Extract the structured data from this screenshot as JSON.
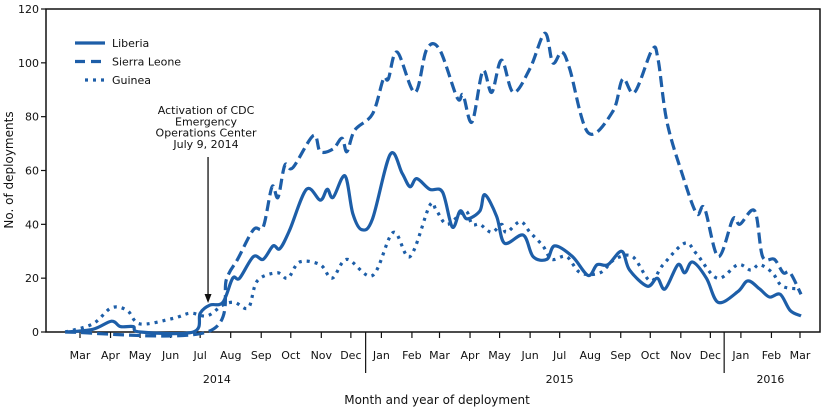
{
  "chart_data": {
    "type": "line",
    "title": "",
    "xlabel": "Month and year of deployment",
    "ylabel": "No. of deployments",
    "ylim": [
      0,
      120
    ],
    "yticks": [
      0,
      20,
      40,
      60,
      80,
      100,
      120
    ],
    "xlim": [
      "2014-02-01",
      "2016-03-15"
    ],
    "grid": false,
    "legend": "top-left",
    "color": "#1d5ea8",
    "month_ticks": [
      {
        "date": "2014-03-01",
        "label": "Mar"
      },
      {
        "date": "2014-04-01",
        "label": "Apr"
      },
      {
        "date": "2014-05-01",
        "label": "May"
      },
      {
        "date": "2014-06-01",
        "label": "Jun"
      },
      {
        "date": "2014-07-01",
        "label": "Jul"
      },
      {
        "date": "2014-08-01",
        "label": "Aug"
      },
      {
        "date": "2014-09-01",
        "label": "Sep"
      },
      {
        "date": "2014-10-01",
        "label": "Oct"
      },
      {
        "date": "2014-11-01",
        "label": "Nov"
      },
      {
        "date": "2014-12-01",
        "label": "Dec"
      },
      {
        "date": "2015-01-01",
        "label": "Jan"
      },
      {
        "date": "2015-02-01",
        "label": "Feb"
      },
      {
        "date": "2015-03-01",
        "label": "Mar"
      },
      {
        "date": "2015-04-01",
        "label": "Apr"
      },
      {
        "date": "2015-05-01",
        "label": "May"
      },
      {
        "date": "2015-06-01",
        "label": "Jun"
      },
      {
        "date": "2015-07-01",
        "label": "Jul"
      },
      {
        "date": "2015-08-01",
        "label": "Aug"
      },
      {
        "date": "2015-09-01",
        "label": "Sep"
      },
      {
        "date": "2015-10-01",
        "label": "Oct"
      },
      {
        "date": "2015-11-01",
        "label": "Nov"
      },
      {
        "date": "2015-12-01",
        "label": "Dec"
      },
      {
        "date": "2016-01-01",
        "label": "Jan"
      },
      {
        "date": "2016-02-01",
        "label": "Feb"
      },
      {
        "date": "2016-03-01",
        "label": "Mar"
      }
    ],
    "years": [
      {
        "label": "2014",
        "center": "2014-07-18",
        "end": "2014-12-16"
      },
      {
        "label": "2015",
        "center": "2015-07-01",
        "end": "2015-12-15"
      },
      {
        "label": "2016",
        "center": "2016-01-31"
      }
    ],
    "annotation": {
      "lines": [
        "Activation of CDC",
        "Emergency",
        "Operations Center",
        "July 9, 2014"
      ],
      "date": "2014-07-09",
      "value": 11
    },
    "series": [
      {
        "name": "Liberia",
        "style": "solid",
        "points": [
          [
            "2014-02-14",
            0
          ],
          [
            "2014-03-14",
            1
          ],
          [
            "2014-04-02",
            4
          ],
          [
            "2014-04-11",
            2
          ],
          [
            "2014-04-24",
            2
          ],
          [
            "2014-05-01",
            0
          ],
          [
            "2014-06-24",
            0
          ],
          [
            "2014-07-01",
            7
          ],
          [
            "2014-07-11",
            10
          ],
          [
            "2014-07-24",
            11
          ],
          [
            "2014-08-03",
            20
          ],
          [
            "2014-08-10",
            20
          ],
          [
            "2014-08-24",
            28
          ],
          [
            "2014-09-03",
            27
          ],
          [
            "2014-09-13",
            32
          ],
          [
            "2014-09-20",
            31
          ],
          [
            "2014-09-30",
            38
          ],
          [
            "2014-10-17",
            53
          ],
          [
            "2014-10-31",
            49
          ],
          [
            "2014-11-07",
            53
          ],
          [
            "2014-11-13",
            50
          ],
          [
            "2014-11-25",
            58
          ],
          [
            "2014-12-03",
            44
          ],
          [
            "2014-12-12",
            38
          ],
          [
            "2014-12-23",
            42
          ],
          [
            "2015-01-10",
            66
          ],
          [
            "2015-01-22",
            59
          ],
          [
            "2015-01-30",
            54
          ],
          [
            "2015-02-06",
            57
          ],
          [
            "2015-02-19",
            53
          ],
          [
            "2015-03-04",
            52
          ],
          [
            "2015-03-14",
            39
          ],
          [
            "2015-03-22",
            45
          ],
          [
            "2015-03-29",
            42
          ],
          [
            "2015-04-11",
            45
          ],
          [
            "2015-04-16",
            51
          ],
          [
            "2015-04-28",
            43
          ],
          [
            "2015-05-06",
            33
          ],
          [
            "2015-05-25",
            36
          ],
          [
            "2015-06-04",
            28
          ],
          [
            "2015-06-18",
            27
          ],
          [
            "2015-06-26",
            32
          ],
          [
            "2015-07-14",
            28
          ],
          [
            "2015-07-30",
            21
          ],
          [
            "2015-08-08",
            25
          ],
          [
            "2015-08-19",
            25
          ],
          [
            "2015-09-02",
            30
          ],
          [
            "2015-09-10",
            23
          ],
          [
            "2015-09-28",
            17
          ],
          [
            "2015-10-08",
            20
          ],
          [
            "2015-10-16",
            16
          ],
          [
            "2015-10-29",
            25
          ],
          [
            "2015-11-05",
            22
          ],
          [
            "2015-11-13",
            26
          ],
          [
            "2015-11-27",
            20
          ],
          [
            "2015-12-09",
            11
          ],
          [
            "2015-12-29",
            15
          ],
          [
            "2016-01-08",
            19
          ],
          [
            "2016-01-20",
            16
          ],
          [
            "2016-01-30",
            13
          ],
          [
            "2016-02-10",
            14
          ],
          [
            "2016-02-20",
            8
          ],
          [
            "2016-03-02",
            6
          ]
        ]
      },
      {
        "name": "Sierra Leone",
        "style": "dashed",
        "points": [
          [
            "2014-02-14",
            0
          ],
          [
            "2014-07-08",
            0
          ],
          [
            "2014-07-28",
            20
          ],
          [
            "2014-08-08",
            27
          ],
          [
            "2014-08-24",
            38
          ],
          [
            "2014-09-03",
            39
          ],
          [
            "2014-09-12",
            54
          ],
          [
            "2014-09-18",
            50
          ],
          [
            "2014-09-25",
            62
          ],
          [
            "2014-10-03",
            61
          ],
          [
            "2014-10-24",
            73
          ],
          [
            "2014-10-31",
            67
          ],
          [
            "2014-11-13",
            68
          ],
          [
            "2014-11-22",
            72
          ],
          [
            "2014-11-27",
            67
          ],
          [
            "2014-12-05",
            75
          ],
          [
            "2014-12-23",
            81
          ],
          [
            "2015-01-03",
            94
          ],
          [
            "2015-01-08",
            94
          ],
          [
            "2015-01-17",
            104
          ],
          [
            "2015-02-04",
            89
          ],
          [
            "2015-02-16",
            105
          ],
          [
            "2015-03-01",
            105
          ],
          [
            "2015-03-19",
            87
          ],
          [
            "2015-03-25",
            88
          ],
          [
            "2015-04-03",
            78
          ],
          [
            "2015-04-14",
            97
          ],
          [
            "2015-04-23",
            89
          ],
          [
            "2015-05-03",
            101
          ],
          [
            "2015-05-15",
            89
          ],
          [
            "2015-06-01",
            98
          ],
          [
            "2015-06-16",
            111
          ],
          [
            "2015-06-24",
            100
          ],
          [
            "2015-07-03",
            104
          ],
          [
            "2015-07-11",
            98
          ],
          [
            "2015-07-30",
            74
          ],
          [
            "2015-08-24",
            82
          ],
          [
            "2015-09-03",
            94
          ],
          [
            "2015-09-15",
            89
          ],
          [
            "2015-10-03",
            105
          ],
          [
            "2015-10-09",
            101
          ],
          [
            "2015-10-18",
            78
          ],
          [
            "2015-11-03",
            58
          ],
          [
            "2015-11-17",
            44
          ],
          [
            "2015-11-25",
            46
          ],
          [
            "2015-12-09",
            28
          ],
          [
            "2015-12-24",
            42
          ],
          [
            "2015-12-31",
            40
          ],
          [
            "2016-01-15",
            45
          ],
          [
            "2016-01-23",
            28
          ],
          [
            "2016-02-04",
            27
          ],
          [
            "2016-02-13",
            22
          ],
          [
            "2016-02-20",
            22
          ],
          [
            "2016-03-02",
            14
          ]
        ]
      },
      {
        "name": "Guinea",
        "style": "dotted",
        "points": [
          [
            "2014-02-14",
            0
          ],
          [
            "2014-03-14",
            3
          ],
          [
            "2014-04-02",
            9
          ],
          [
            "2014-04-18",
            8
          ],
          [
            "2014-05-01",
            3
          ],
          [
            "2014-06-03",
            5
          ],
          [
            "2014-06-21",
            7
          ],
          [
            "2014-07-08",
            6
          ],
          [
            "2014-07-24",
            10
          ],
          [
            "2014-08-05",
            11
          ],
          [
            "2014-08-19",
            9
          ],
          [
            "2014-08-28",
            19
          ],
          [
            "2014-09-17",
            22
          ],
          [
            "2014-09-28",
            20
          ],
          [
            "2014-10-10",
            26
          ],
          [
            "2014-10-31",
            25
          ],
          [
            "2014-11-12",
            20
          ],
          [
            "2014-11-27",
            27
          ],
          [
            "2014-12-23",
            21
          ],
          [
            "2015-01-13",
            37
          ],
          [
            "2015-01-30",
            28
          ],
          [
            "2015-02-19",
            47
          ],
          [
            "2015-02-26",
            45
          ],
          [
            "2015-03-09",
            40
          ],
          [
            "2015-03-27",
            45
          ],
          [
            "2015-04-03",
            40
          ],
          [
            "2015-04-11",
            40
          ],
          [
            "2015-04-23",
            37
          ],
          [
            "2015-05-03",
            40
          ],
          [
            "2015-05-08",
            37
          ],
          [
            "2015-05-22",
            41
          ],
          [
            "2015-06-01",
            37
          ],
          [
            "2015-06-14",
            32
          ],
          [
            "2015-06-23",
            27
          ],
          [
            "2015-07-08",
            28
          ],
          [
            "2015-07-22",
            22
          ],
          [
            "2015-08-11",
            22
          ],
          [
            "2015-08-26",
            27
          ],
          [
            "2015-09-13",
            28
          ],
          [
            "2015-10-01",
            19
          ],
          [
            "2015-10-14",
            25
          ],
          [
            "2015-11-05",
            33
          ],
          [
            "2015-11-17",
            29
          ],
          [
            "2015-12-08",
            20
          ],
          [
            "2015-12-29",
            25
          ],
          [
            "2016-01-11",
            23
          ],
          [
            "2016-01-20",
            25
          ],
          [
            "2016-02-02",
            22
          ],
          [
            "2016-02-12",
            17
          ],
          [
            "2016-03-01",
            16
          ]
        ]
      }
    ]
  }
}
